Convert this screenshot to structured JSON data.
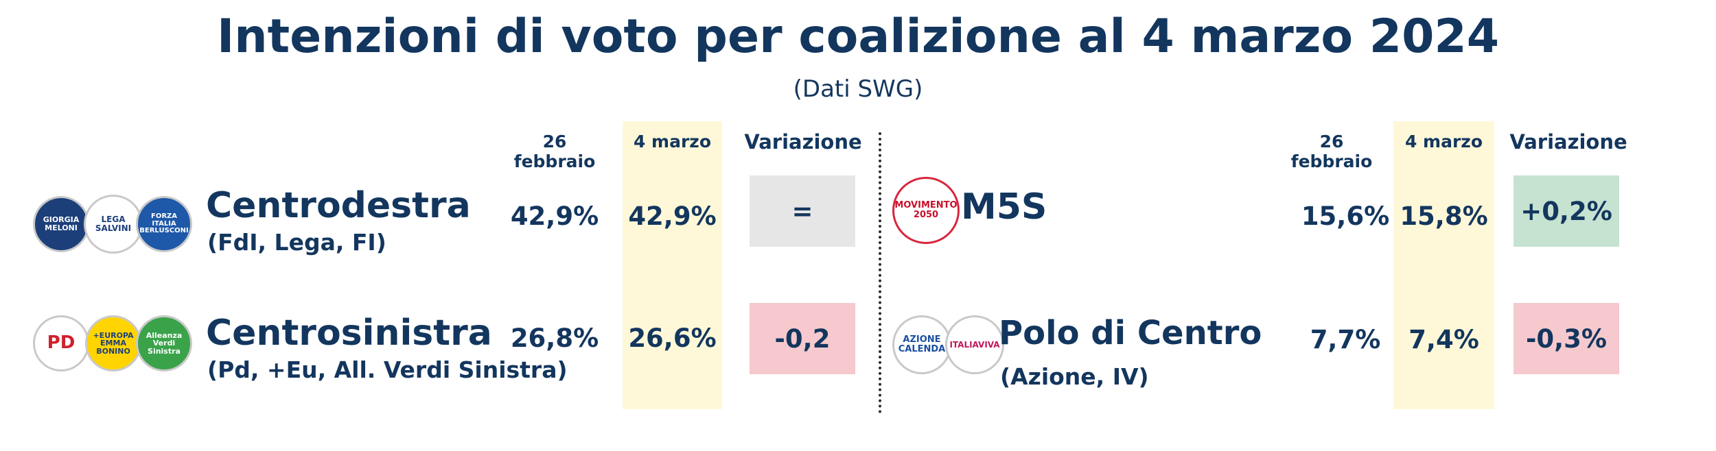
{
  "title": "Intenzioni di voto per coalizione al 4 marzo 2024",
  "subtitle": "(Dati SWG)",
  "headers": {
    "prev": "26 febbraio",
    "curr": "4 marzo",
    "var": "Variazione"
  },
  "colors": {
    "neutral": "#e6e6e6",
    "positive": "#c6e2d0",
    "negative": "#f5c9cd",
    "highlight": "#fff8d8",
    "text": "#13365e"
  },
  "left": [
    {
      "name": "Centrodestra",
      "sub": "(FdI, Lega, FI)",
      "prev": "42,9%",
      "curr": "42,9%",
      "change": "=",
      "status": "neutral",
      "logos": [
        {
          "icon": "fratelli-d-italia-logo-icon",
          "text": "GIORGIA MELONI"
        },
        {
          "icon": "lega-logo-icon",
          "text": "LEGA SALVINI"
        },
        {
          "icon": "forza-italia-logo-icon",
          "text": "FORZA ITALIA BERLUSCONI"
        }
      ]
    },
    {
      "name": "Centrosinistra",
      "sub": "(Pd, +Eu, All. Verdi Sinistra)",
      "prev": "26,8%",
      "curr": "26,6%",
      "change": "-0,2",
      "status": "negative",
      "logos": [
        {
          "icon": "partito-democratico-logo-icon",
          "text": "PD"
        },
        {
          "icon": "piu-europa-logo-icon",
          "text": "+EUROPA EMMA BONINO"
        },
        {
          "icon": "alleanza-verdi-sinistra-logo-icon",
          "text": "Alleanza Verdi Sinistra"
        }
      ]
    }
  ],
  "right": [
    {
      "name": "M5S",
      "sub": "",
      "prev": "15,6%",
      "curr": "15,8%",
      "change": "+0,2%",
      "status": "positive",
      "logos": [
        {
          "icon": "movimento-5-stelle-logo-icon",
          "text": "MOVIMENTO 2050"
        }
      ]
    },
    {
      "name": "Polo di Centro",
      "sub": "(Azione, IV)",
      "prev": "7,7%",
      "curr": "7,4%",
      "change": "-0,3%",
      "status": "negative",
      "logos": [
        {
          "icon": "azione-logo-icon",
          "text": "AZIONE CALENDA"
        },
        {
          "icon": "italia-viva-logo-icon",
          "text": "ITALIAVIVA"
        }
      ]
    }
  ]
}
